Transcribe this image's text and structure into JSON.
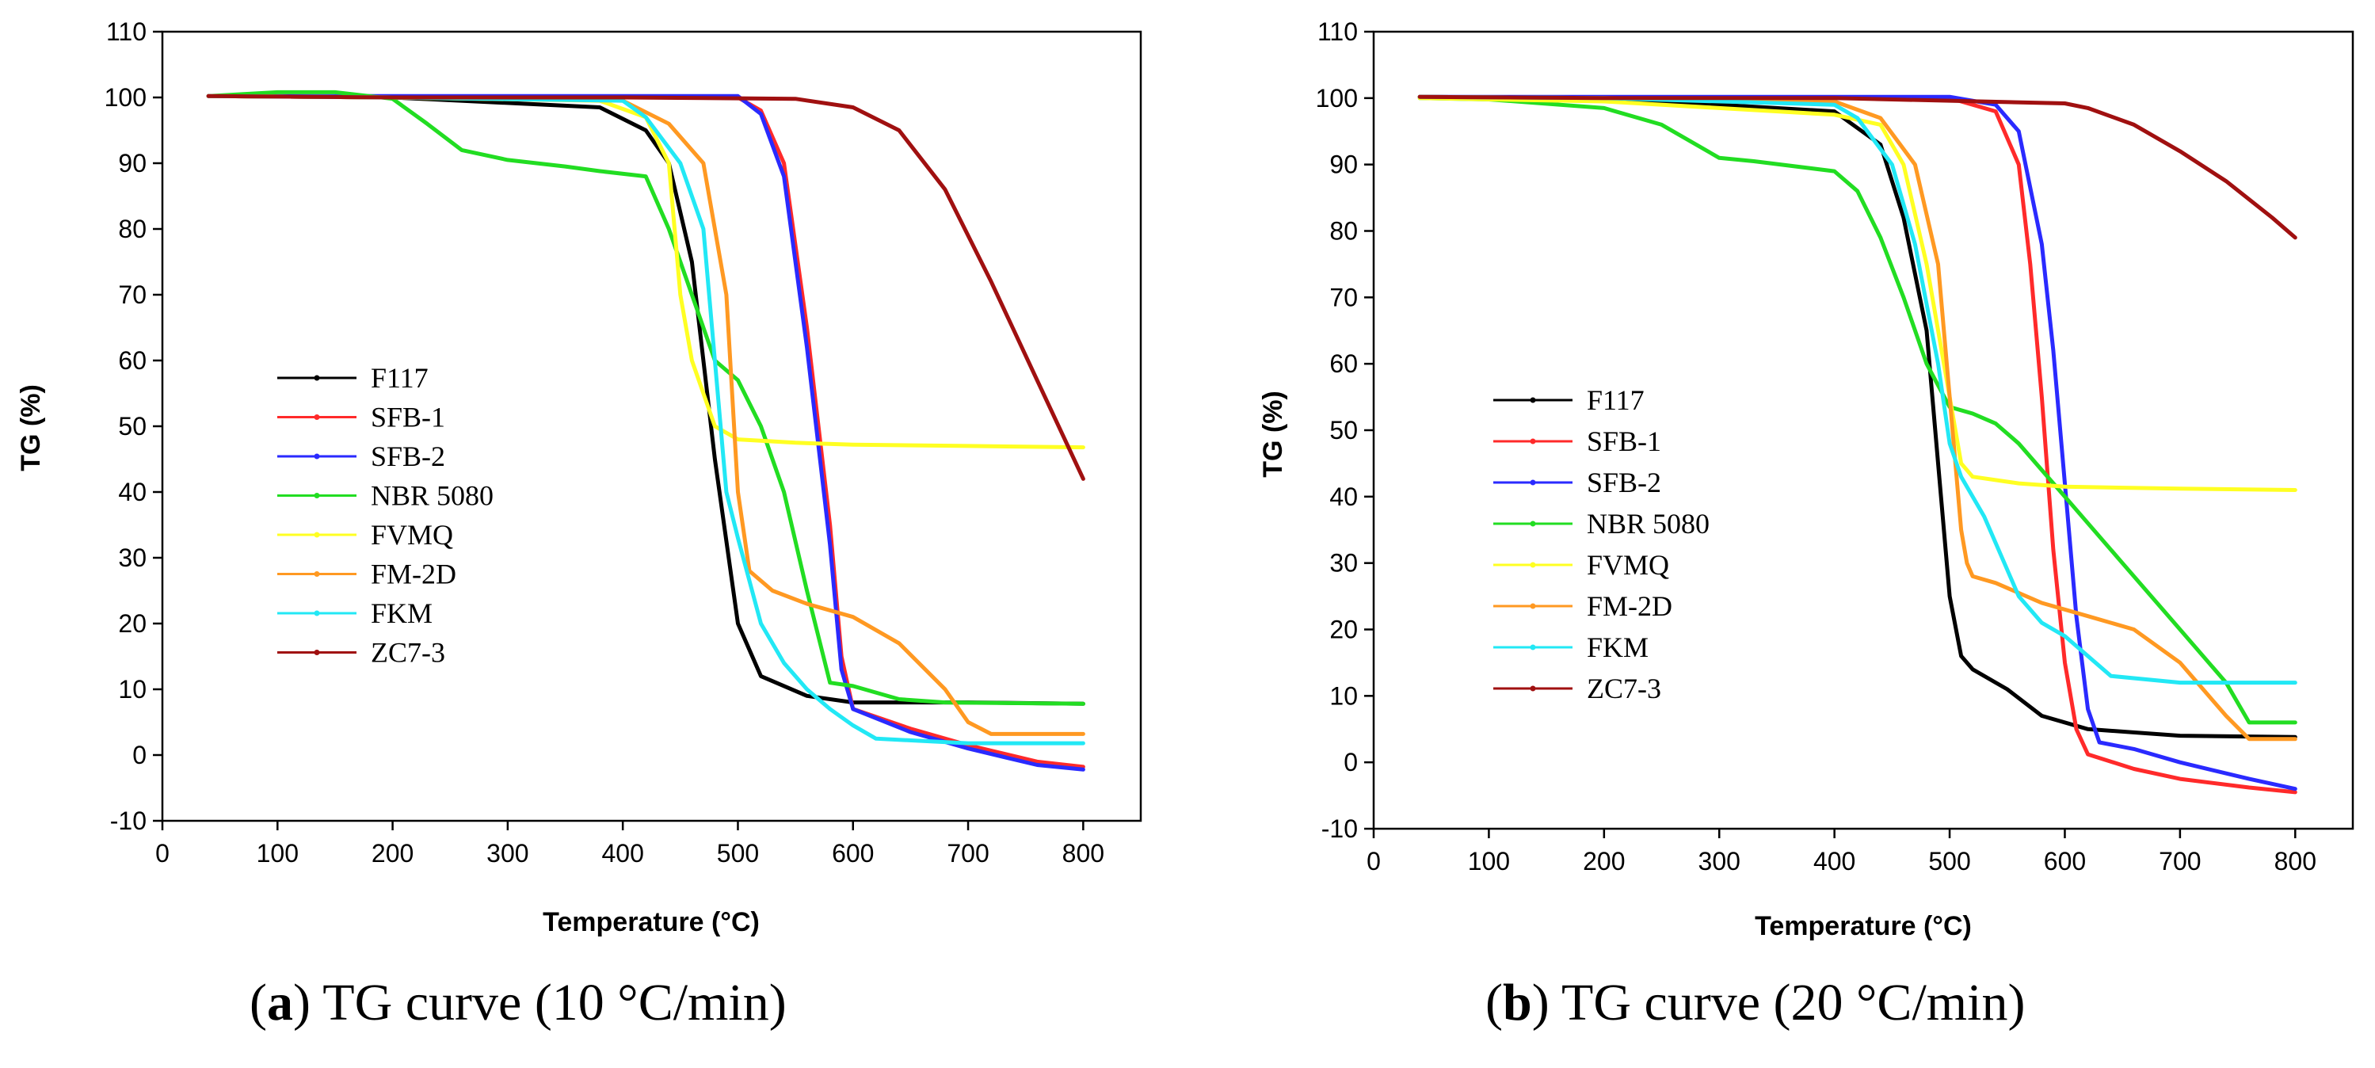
{
  "chart_data": [
    {
      "type": "line",
      "panel": "a",
      "caption_letter": "a",
      "caption_text": "TG curve (10 °C/min)",
      "xlabel": "Temperature (°C)",
      "ylabel": "TG (%)",
      "xlim": [
        0,
        850
      ],
      "ylim": [
        -10,
        110
      ],
      "xticks": [
        0,
        100,
        200,
        300,
        400,
        500,
        600,
        700,
        800
      ],
      "yticks": [
        -10,
        0,
        10,
        20,
        30,
        40,
        50,
        60,
        70,
        80,
        90,
        100,
        110
      ],
      "legend_position": "middle-left",
      "series": [
        {
          "name": "F117",
          "color": "#000000",
          "x": [
            40,
            200,
            380,
            420,
            440,
            460,
            480,
            500,
            520,
            560,
            600,
            700,
            800
          ],
          "y": [
            100.2,
            100,
            98.5,
            95,
            90,
            75,
            45,
            20,
            12,
            9,
            8,
            8,
            7.8
          ]
        },
        {
          "name": "SFB-1",
          "color": "#ff2a2a",
          "x": [
            40,
            200,
            400,
            500,
            520,
            540,
            560,
            580,
            590,
            600,
            650,
            700,
            760,
            800
          ],
          "y": [
            100.2,
            100,
            100,
            100,
            98,
            90,
            65,
            35,
            15,
            7,
            4,
            1.5,
            -1,
            -1.8
          ]
        },
        {
          "name": "SFB-2",
          "color": "#2a2aff",
          "x": [
            40,
            200,
            400,
            500,
            520,
            540,
            560,
            580,
            590,
            600,
            650,
            700,
            760,
            800
          ],
          "y": [
            100.2,
            100.2,
            100.2,
            100.2,
            97.5,
            88,
            62,
            32,
            13,
            7,
            3.5,
            1,
            -1.5,
            -2.2
          ]
        },
        {
          "name": "NBR 5080",
          "color": "#22dd22",
          "x": [
            40,
            100,
            150,
            200,
            230,
            260,
            300,
            350,
            380,
            420,
            440,
            460,
            480,
            500,
            520,
            540,
            560,
            580,
            600,
            640,
            680,
            800
          ],
          "y": [
            100.2,
            100.8,
            100.8,
            99.8,
            96,
            92,
            90.5,
            89.5,
            88.8,
            88,
            80,
            70,
            60,
            57,
            50,
            40,
            25,
            11,
            10.5,
            8.5,
            8,
            7.8
          ]
        },
        {
          "name": "FVMQ",
          "color": "#ffff22",
          "x": [
            40,
            200,
            380,
            420,
            440,
            450,
            460,
            480,
            500,
            550,
            600,
            700,
            800
          ],
          "y": [
            100.2,
            100,
            99.5,
            97,
            90,
            70,
            60,
            50,
            48,
            47.5,
            47.2,
            47,
            46.8
          ]
        },
        {
          "name": "FM-2D",
          "color": "#ff9922",
          "x": [
            40,
            200,
            400,
            440,
            470,
            490,
            500,
            510,
            530,
            560,
            600,
            640,
            680,
            700,
            720,
            800
          ],
          "y": [
            100.2,
            100,
            99.5,
            96,
            90,
            70,
            40,
            28,
            25,
            23,
            21,
            17,
            10,
            5,
            3.2,
            3.2
          ]
        },
        {
          "name": "FKM",
          "color": "#22e8f5",
          "x": [
            40,
            200,
            400,
            420,
            450,
            470,
            480,
            490,
            500,
            520,
            540,
            560,
            580,
            600,
            620,
            700,
            800
          ],
          "y": [
            100.2,
            100,
            99.5,
            97,
            90,
            80,
            60,
            40,
            33,
            20,
            14,
            10,
            7,
            4.5,
            2.5,
            1.8,
            1.8
          ]
        },
        {
          "name": "ZC7-3",
          "color": "#a01010",
          "x": [
            40,
            200,
            400,
            550,
            600,
            640,
            680,
            720,
            760,
            800
          ],
          "y": [
            100.2,
            100,
            100,
            99.8,
            98.5,
            95,
            86,
            72,
            57,
            42
          ]
        }
      ]
    },
    {
      "type": "line",
      "panel": "b",
      "caption_letter": "b",
      "caption_text": "TG curve (20 °C/min)",
      "xlabel": "Temperature (°C)",
      "ylabel": "TG (%)",
      "xlim": [
        0,
        850
      ],
      "ylim": [
        -10,
        110
      ],
      "xticks": [
        0,
        100,
        200,
        300,
        400,
        500,
        600,
        700,
        800
      ],
      "yticks": [
        -10,
        0,
        10,
        20,
        30,
        40,
        50,
        60,
        70,
        80,
        90,
        100,
        110
      ],
      "legend_position": "middle-left",
      "series": [
        {
          "name": "F117",
          "color": "#000000",
          "x": [
            40,
            200,
            400,
            440,
            460,
            480,
            490,
            500,
            510,
            520,
            550,
            580,
            620,
            700,
            800
          ],
          "y": [
            100.2,
            100,
            98,
            93,
            82,
            65,
            45,
            25,
            16,
            14,
            11,
            7,
            5,
            4,
            3.8
          ]
        },
        {
          "name": "SFB-1",
          "color": "#ff2a2a",
          "x": [
            40,
            200,
            500,
            540,
            560,
            570,
            580,
            590,
            600,
            610,
            620,
            660,
            700,
            760,
            800
          ],
          "y": [
            100.2,
            100,
            100,
            98,
            90,
            75,
            55,
            32,
            15,
            5,
            1.2,
            -1,
            -2.5,
            -3.8,
            -4.5
          ]
        },
        {
          "name": "SFB-2",
          "color": "#2a2aff",
          "x": [
            40,
            200,
            500,
            540,
            560,
            580,
            590,
            600,
            610,
            620,
            630,
            660,
            700,
            760,
            800
          ],
          "y": [
            100.2,
            100.2,
            100.2,
            99,
            95,
            78,
            62,
            42,
            22,
            8,
            3,
            2,
            0,
            -2.5,
            -4
          ]
        },
        {
          "name": "NBR 5080",
          "color": "#22dd22",
          "x": [
            40,
            100,
            200,
            250,
            300,
            330,
            400,
            420,
            440,
            460,
            480,
            500,
            520,
            540,
            560,
            600,
            650,
            700,
            740,
            760,
            800
          ],
          "y": [
            100,
            99.8,
            98.5,
            96,
            91,
            90.5,
            89,
            86,
            79,
            70,
            60,
            53.5,
            52.5,
            51,
            48,
            40,
            30,
            20,
            12,
            6,
            6
          ]
        },
        {
          "name": "FVMQ",
          "color": "#ffff22",
          "x": [
            40,
            200,
            400,
            440,
            460,
            480,
            500,
            510,
            520,
            560,
            600,
            700,
            800
          ],
          "y": [
            100,
            99.5,
            97.5,
            96,
            90,
            75,
            55,
            45,
            43,
            42,
            41.5,
            41.2,
            41
          ]
        },
        {
          "name": "FM-2D",
          "color": "#ff9922",
          "x": [
            40,
            200,
            400,
            440,
            470,
            490,
            500,
            510,
            515,
            520,
            540,
            580,
            620,
            660,
            700,
            740,
            760,
            800
          ],
          "y": [
            100.2,
            100,
            99.5,
            97,
            90,
            75,
            55,
            35,
            30,
            28,
            27,
            24,
            22,
            20,
            15,
            7,
            3.5,
            3.5
          ]
        },
        {
          "name": "FKM",
          "color": "#22e8f5",
          "x": [
            40,
            200,
            400,
            420,
            450,
            470,
            490,
            500,
            510,
            530,
            560,
            580,
            600,
            640,
            700,
            800
          ],
          "y": [
            100.2,
            100,
            99,
            97,
            90,
            78,
            60,
            48,
            43,
            37,
            25,
            21,
            19,
            13,
            12,
            12
          ]
        },
        {
          "name": "ZC7-3",
          "color": "#a01010",
          "x": [
            40,
            200,
            400,
            600,
            620,
            660,
            700,
            740,
            780,
            800
          ],
          "y": [
            100.2,
            100,
            100,
            99.2,
            98.5,
            96,
            92,
            87.5,
            82,
            79
          ]
        }
      ]
    }
  ]
}
